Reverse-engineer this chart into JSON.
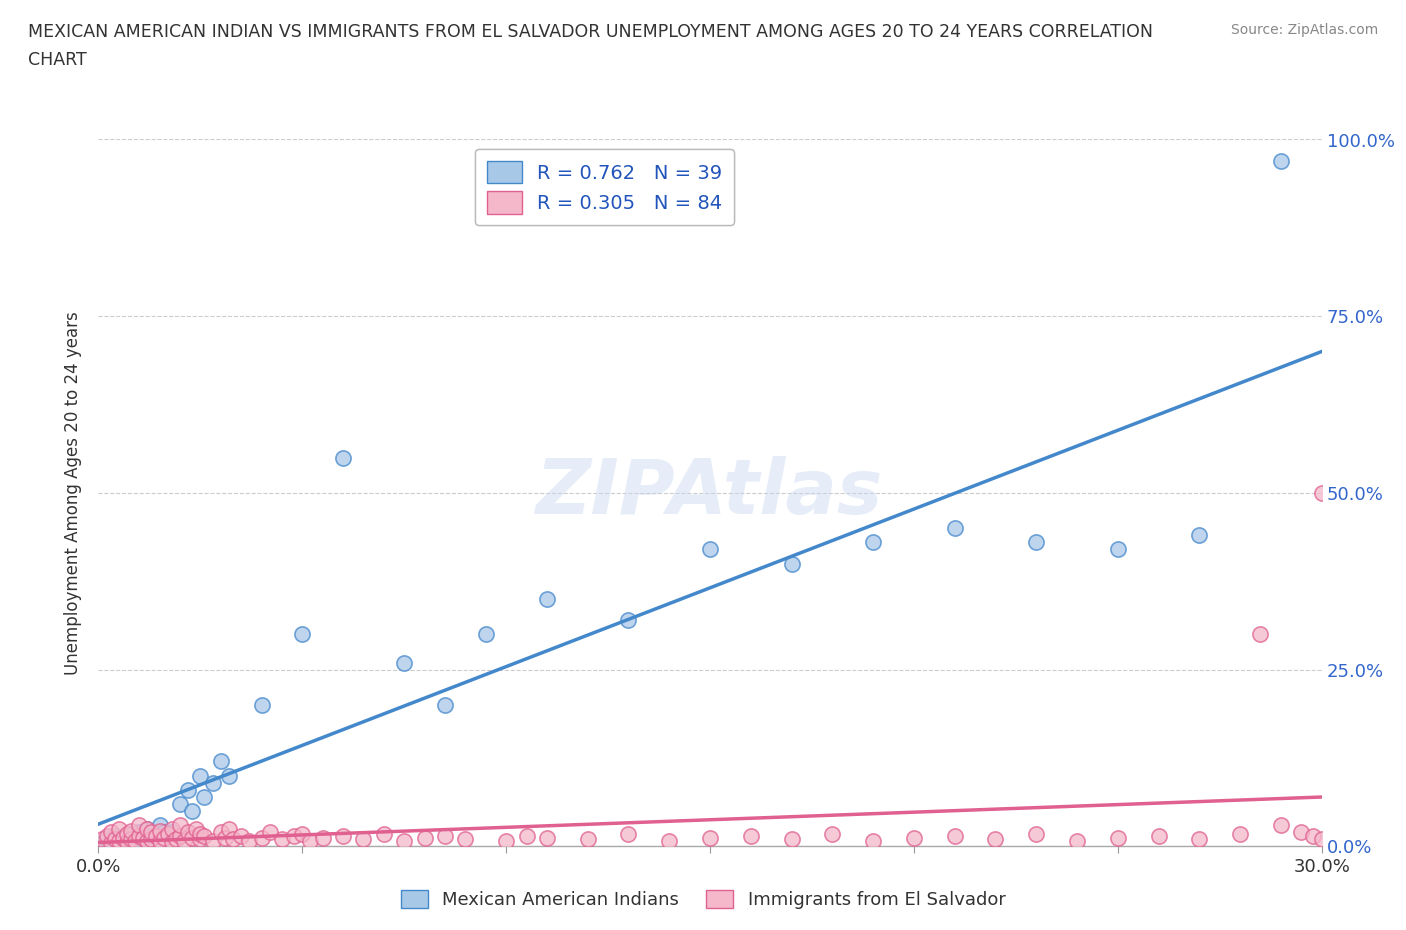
{
  "title_line1": "MEXICAN AMERICAN INDIAN VS IMMIGRANTS FROM EL SALVADOR UNEMPLOYMENT AMONG AGES 20 TO 24 YEARS CORRELATION",
  "title_line2": "CHART",
  "source": "Source: ZipAtlas.com",
  "ylabel": "Unemployment Among Ages 20 to 24 years",
  "xlim": [
    0.0,
    0.3
  ],
  "ylim": [
    0.0,
    1.0
  ],
  "xticks": [
    0.0,
    0.05,
    0.1,
    0.15,
    0.2,
    0.25,
    0.3
  ],
  "xticklabels": [
    "0.0%",
    "",
    "",
    "",
    "",
    "",
    "30.0%"
  ],
  "yticks": [
    0.0,
    0.25,
    0.5,
    0.75,
    1.0
  ],
  "yticklabels": [
    "0.0%",
    "25.0%",
    "50.0%",
    "75.0%",
    "100.0%"
  ],
  "blue_R": 0.762,
  "blue_N": 39,
  "pink_R": 0.305,
  "pink_N": 84,
  "blue_color": "#a8c8e8",
  "pink_color": "#f4b8ca",
  "blue_line_color": "#4488cc",
  "pink_line_color": "#e06090",
  "legend_label_blue": "Mexican American Indians",
  "legend_label_pink": "Immigrants from El Salvador",
  "blue_scatter_x": [
    0.001,
    0.002,
    0.003,
    0.004,
    0.005,
    0.006,
    0.007,
    0.008,
    0.009,
    0.01,
    0.012,
    0.013,
    0.015,
    0.016,
    0.018,
    0.02,
    0.022,
    0.023,
    0.025,
    0.026,
    0.028,
    0.03,
    0.032,
    0.04,
    0.05,
    0.06,
    0.075,
    0.085,
    0.095,
    0.11,
    0.13,
    0.15,
    0.17,
    0.19,
    0.21,
    0.23,
    0.25,
    0.27,
    0.29
  ],
  "blue_scatter_y": [
    0.005,
    0.01,
    0.008,
    0.015,
    0.005,
    0.012,
    0.007,
    0.018,
    0.01,
    0.02,
    0.025,
    0.015,
    0.03,
    0.02,
    0.02,
    0.06,
    0.08,
    0.05,
    0.1,
    0.07,
    0.09,
    0.12,
    0.1,
    0.2,
    0.3,
    0.55,
    0.26,
    0.2,
    0.3,
    0.35,
    0.32,
    0.42,
    0.4,
    0.43,
    0.45,
    0.43,
    0.42,
    0.44,
    0.97
  ],
  "pink_scatter_x": [
    0.001,
    0.002,
    0.003,
    0.003,
    0.004,
    0.005,
    0.005,
    0.006,
    0.007,
    0.007,
    0.008,
    0.008,
    0.009,
    0.01,
    0.01,
    0.011,
    0.012,
    0.012,
    0.013,
    0.013,
    0.014,
    0.015,
    0.015,
    0.016,
    0.017,
    0.018,
    0.018,
    0.019,
    0.02,
    0.02,
    0.021,
    0.022,
    0.023,
    0.024,
    0.025,
    0.025,
    0.026,
    0.028,
    0.03,
    0.031,
    0.032,
    0.033,
    0.035,
    0.037,
    0.04,
    0.042,
    0.045,
    0.048,
    0.05,
    0.052,
    0.055,
    0.06,
    0.065,
    0.07,
    0.075,
    0.08,
    0.085,
    0.09,
    0.1,
    0.105,
    0.11,
    0.12,
    0.13,
    0.14,
    0.15,
    0.16,
    0.17,
    0.18,
    0.19,
    0.2,
    0.21,
    0.22,
    0.23,
    0.24,
    0.25,
    0.26,
    0.27,
    0.28,
    0.285,
    0.29,
    0.295,
    0.298,
    0.3,
    0.3
  ],
  "pink_scatter_y": [
    0.01,
    0.015,
    0.005,
    0.02,
    0.01,
    0.008,
    0.025,
    0.012,
    0.006,
    0.018,
    0.01,
    0.022,
    0.008,
    0.015,
    0.03,
    0.012,
    0.008,
    0.025,
    0.01,
    0.02,
    0.015,
    0.008,
    0.022,
    0.012,
    0.018,
    0.006,
    0.025,
    0.01,
    0.015,
    0.03,
    0.008,
    0.02,
    0.012,
    0.025,
    0.01,
    0.018,
    0.015,
    0.008,
    0.02,
    0.012,
    0.025,
    0.01,
    0.015,
    0.008,
    0.012,
    0.02,
    0.01,
    0.015,
    0.018,
    0.008,
    0.012,
    0.015,
    0.01,
    0.018,
    0.008,
    0.012,
    0.015,
    0.01,
    0.008,
    0.015,
    0.012,
    0.01,
    0.018,
    0.008,
    0.012,
    0.015,
    0.01,
    0.018,
    0.008,
    0.012,
    0.015,
    0.01,
    0.018,
    0.008,
    0.012,
    0.015,
    0.01,
    0.018,
    0.3,
    0.03,
    0.02,
    0.015,
    0.01,
    0.5
  ]
}
